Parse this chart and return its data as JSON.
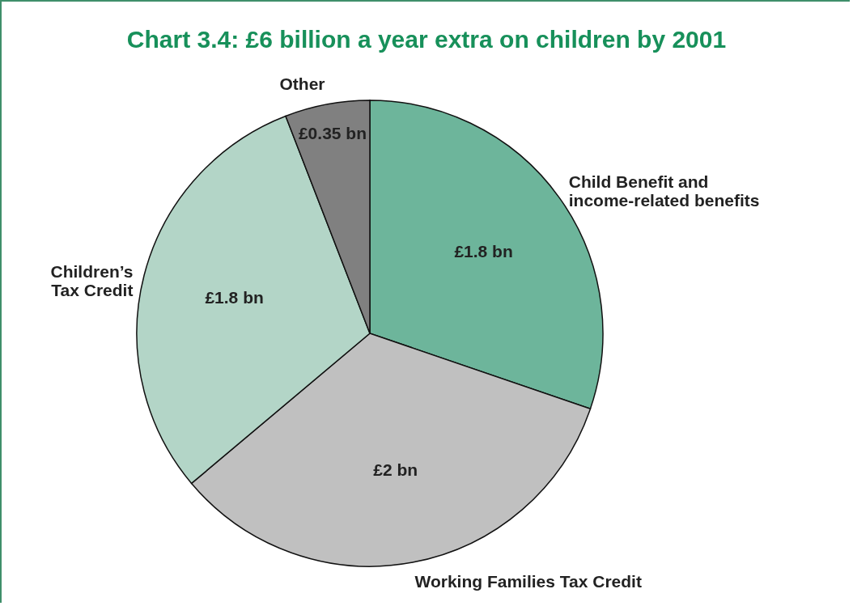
{
  "chart_data": {
    "type": "pie",
    "title": "Chart 3.4: £6 billion a year extra on children by 2001",
    "categories": [
      "Child Benefit and\nincome-related benefits",
      "Working Families  Tax Credit",
      "Children’s\nTax Credit",
      "Other"
    ],
    "values": [
      1.8,
      2,
      1.8,
      0.35
    ],
    "value_labels": [
      "£1.8 bn",
      "£2 bn",
      "£1.8 bn",
      "£0.35 bn"
    ],
    "colors": [
      "#6db59b",
      "#c0c0c0",
      "#b3d5c7",
      "#808080"
    ]
  }
}
